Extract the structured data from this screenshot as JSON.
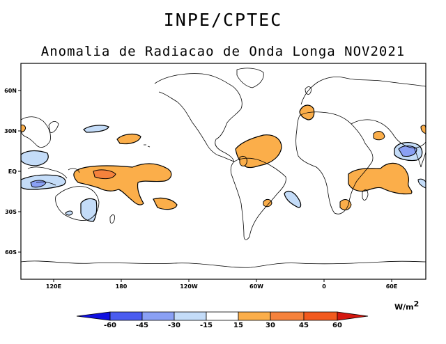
{
  "header": {
    "title": "INPE/CPTEC",
    "subtitle": "Anomalia de Radiacao de Onda Longa NOV2021"
  },
  "map": {
    "lat_labels": [
      "60N",
      "30N",
      "EQ",
      "30S",
      "60S"
    ],
    "lon_labels": [
      "120E",
      "180",
      "120W",
      "60W",
      "0",
      "60E"
    ]
  },
  "legend": {
    "units_base": "W/m",
    "units_exp": "2",
    "ticks": [
      "-60",
      "-45",
      "-30",
      "-15",
      "15",
      "30",
      "45",
      "60"
    ],
    "colors": [
      "#1010e0",
      "#4a5cf0",
      "#8aa0f4",
      "#c4dcf8",
      "#ffffff",
      "#fbae4a",
      "#f5823c",
      "#f25a1e",
      "#d41810"
    ]
  }
}
